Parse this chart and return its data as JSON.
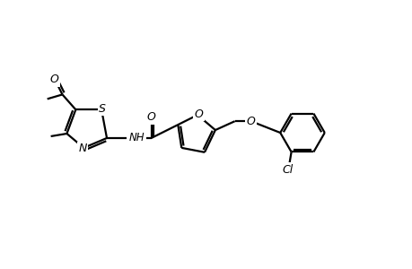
{
  "bg_color": "#ffffff",
  "line_color": "#000000",
  "line_width": 1.6,
  "font_size": 8.5,
  "xlim": [
    0,
    46
  ],
  "ylim": [
    0,
    30
  ]
}
